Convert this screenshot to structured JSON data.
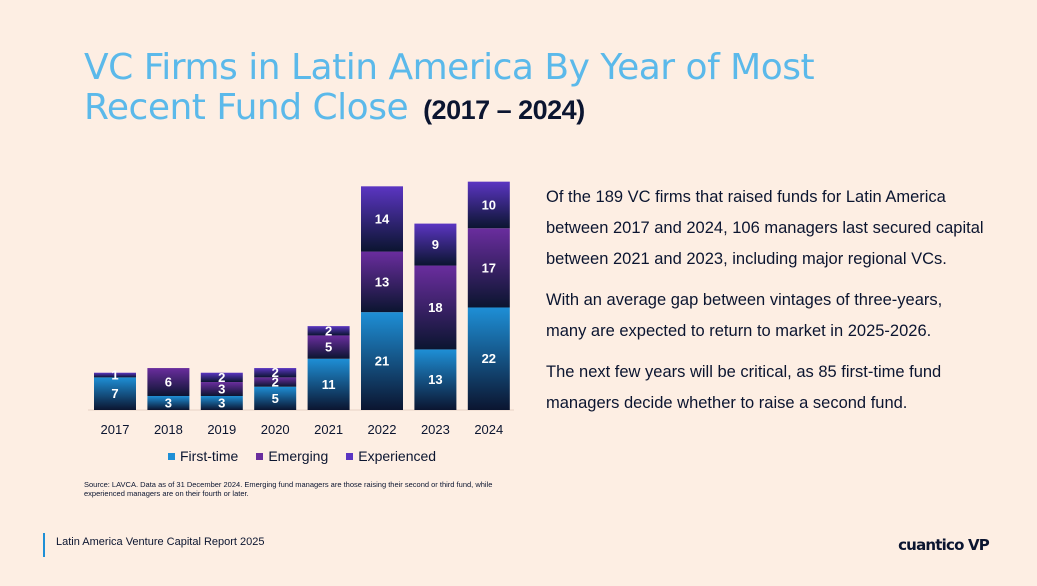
{
  "title": {
    "main": "VC Firms in Latin America By Year of Most Recent Fund Close",
    "years": "(2017 – 2024)"
  },
  "colors": {
    "background": "#fdeee3",
    "title": "#5bb9ea",
    "first_time": "#1e8fd6",
    "emerging": "#6a2d9e",
    "experienced": "#5b35c2",
    "dark": "#0b1530"
  },
  "chart_data": {
    "type": "bar",
    "stacked": true,
    "categories": [
      "2017",
      "2018",
      "2019",
      "2020",
      "2021",
      "2022",
      "2023",
      "2024"
    ],
    "series": [
      {
        "name": "First-time",
        "values": [
          7,
          3,
          3,
          5,
          11,
          21,
          13,
          22
        ]
      },
      {
        "name": "Emerging",
        "values": [
          0,
          6,
          3,
          2,
          5,
          13,
          18,
          17
        ]
      },
      {
        "name": "Experienced",
        "values": [
          1,
          0,
          2,
          2,
          2,
          14,
          9,
          10
        ]
      }
    ],
    "ylim": [
      0,
      50
    ],
    "grid": false,
    "legend": "bottom"
  },
  "source": "Source: LAVCA. Data as of 31 December 2024. Emerging fund managers are those raising their second or third fund, while experienced managers are on their fourth or later.",
  "body": {
    "p1": "Of the 189 VC firms that raised funds for Latin America between 2017 and 2024, 106 managers last secured capital between 2021 and 2023, including major regional VCs.",
    "p2": "With an average gap between vintages of three-years, many are expected to return to market in 2025-2026.",
    "p3": "The next few years will be critical, as 85 first-time fund managers decide whether to raise a second fund."
  },
  "footer": {
    "report": "Latin America Venture Capital Report 2025",
    "logo": "cuantico VP"
  }
}
